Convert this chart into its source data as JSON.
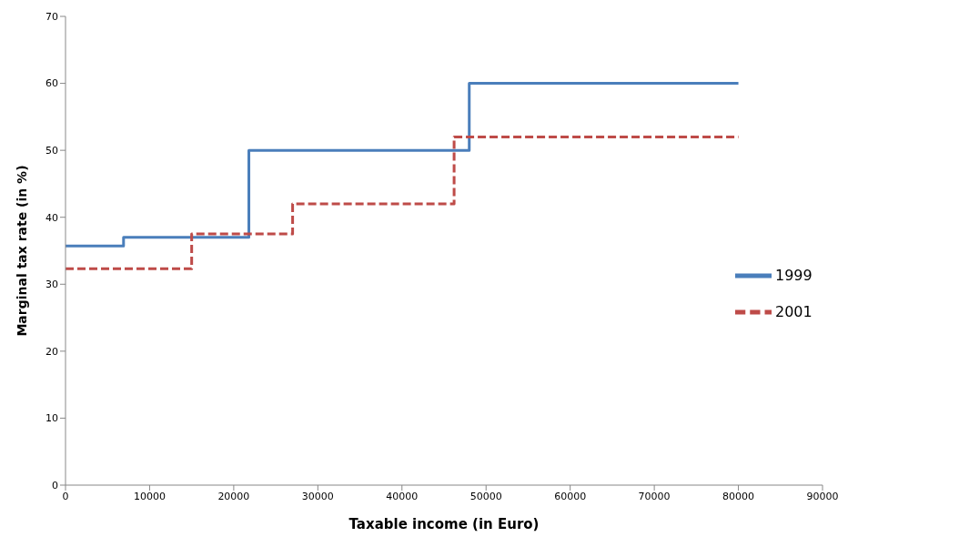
{
  "chart_data": {
    "type": "step",
    "xlabel": "Taxable income (in Euro)",
    "ylabel": "Marginal tax rate (in %)",
    "xlim": [
      0,
      90000
    ],
    "xticks": [
      0,
      10000,
      20000,
      30000,
      40000,
      50000,
      60000,
      70000,
      80000,
      90000
    ],
    "ylim": [
      0,
      70
    ],
    "yticks": [
      0,
      10,
      20,
      30,
      40,
      50,
      60,
      70
    ],
    "grid": false,
    "legend": "right",
    "marker": "none",
    "series": [
      {
        "name": "1999",
        "color": "#4a7ebb",
        "line_style": "solid",
        "x": [
          0,
          6900,
          21800,
          48000,
          80000
        ],
        "values": [
          35.7,
          37,
          50,
          60,
          60
        ]
      },
      {
        "name": "2001",
        "color": "#be4b48",
        "line_style": "dashed",
        "x": [
          0,
          15000,
          27000,
          46200,
          80000
        ],
        "values": [
          32.3,
          37.5,
          42,
          52,
          52
        ]
      }
    ]
  }
}
